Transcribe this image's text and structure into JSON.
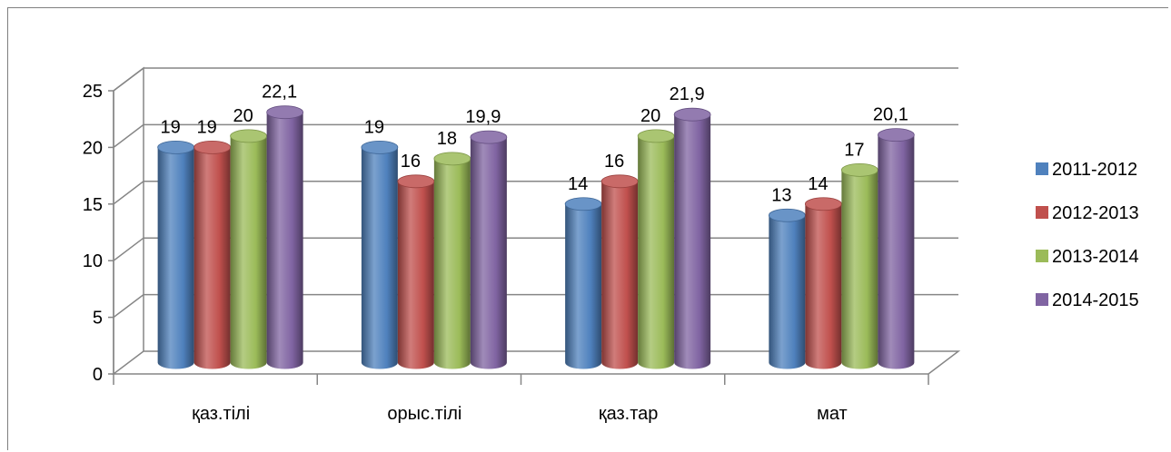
{
  "chart_data": {
    "type": "bar",
    "categories": [
      "қаз.тілі",
      "орыс.тілі",
      "қаз.тар",
      "мат"
    ],
    "series": [
      {
        "name": "2011-2012",
        "values": [
          19,
          19,
          14,
          13
        ],
        "labels": [
          "19",
          "19",
          "14",
          "13"
        ],
        "color": "#4f81bd"
      },
      {
        "name": "2012-2013",
        "values": [
          19,
          16,
          16,
          14
        ],
        "labels": [
          "19",
          "16",
          "16",
          "14"
        ],
        "color": "#c0504d"
      },
      {
        "name": "2013-2014",
        "values": [
          20,
          18,
          20,
          17
        ],
        "labels": [
          "20",
          "18",
          "20",
          "17"
        ],
        "color": "#9bbb59"
      },
      {
        "name": "2014-2015",
        "values": [
          22.1,
          19.9,
          21.9,
          20.1
        ],
        "labels": [
          "22,1",
          "19,9",
          "21,9",
          "20,1"
        ],
        "color": "#8064a2"
      }
    ],
    "yticks": [
      "0",
      "5",
      "10",
      "15",
      "20",
      "25"
    ],
    "ylim": [
      0,
      25
    ],
    "grid": true,
    "style": "3d-cylinder",
    "legend_position": "right"
  }
}
